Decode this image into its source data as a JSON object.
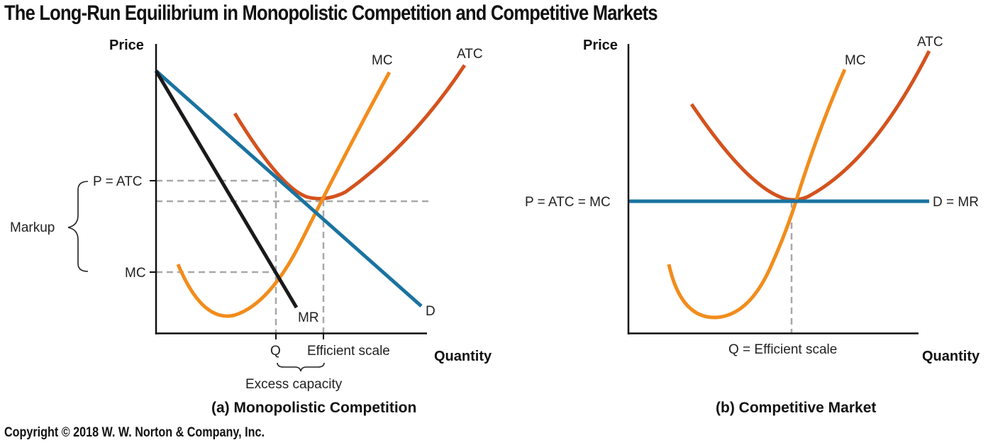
{
  "title": "The Long-Run Equilibrium in Monopolistic Competition and Competitive Markets",
  "copyright": "Copyright © 2018 W. W. Norton & Company, Inc.",
  "colors": {
    "atc": "#d4521e",
    "mc": "#f28c1c",
    "demand": "#1a73a0",
    "mr": "#1a1a1a",
    "guide": "#a8a8a8",
    "axis": "#111111"
  },
  "panel_a": {
    "caption": "(a) Monopolistic Competition",
    "y_axis_label": "Price",
    "x_axis_label": "Quantity",
    "curve_labels": {
      "mc": "MC",
      "atc": "ATC",
      "demand": "D",
      "mr": "MR"
    },
    "price_labels": {
      "p_atc": "P = ATC",
      "mc": "MC"
    },
    "markup_label": "Markup",
    "quantity_labels": {
      "q": "Q",
      "efficient_scale": "Efficient scale"
    },
    "excess_capacity_label": "Excess capacity"
  },
  "panel_b": {
    "caption": "(b) Competitive Market",
    "y_axis_label": "Price",
    "x_axis_label": "Quantity",
    "curve_labels": {
      "mc": "MC",
      "atc": "ATC",
      "demand_mr": "D = MR"
    },
    "price_label": "P = ATC = MC",
    "quantity_label": "Q = Efficient scale"
  }
}
